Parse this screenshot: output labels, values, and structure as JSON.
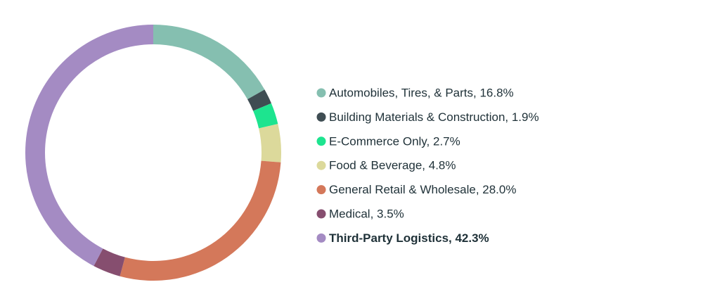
{
  "chart_data": {
    "type": "donut",
    "categories": [
      "Automobiles, Tires, & Parts, 16.8%",
      "Building Materials & Construction, 1.9%",
      "E-Commerce Only, 2.7%",
      "Food & Beverage, 4.8%",
      "General Retail & Wholesale, 28.0%",
      "Medical, 3.5%",
      "Third-Party Logistics, 42.3%"
    ],
    "values": [
      16.8,
      1.9,
      2.7,
      4.8,
      28.0,
      3.5,
      42.3
    ],
    "colors": [
      "#85bfb0",
      "#3f4d53",
      "#1de48f",
      "#dcd99b",
      "#d4785a",
      "#864e6f",
      "#a48bc3"
    ]
  }
}
